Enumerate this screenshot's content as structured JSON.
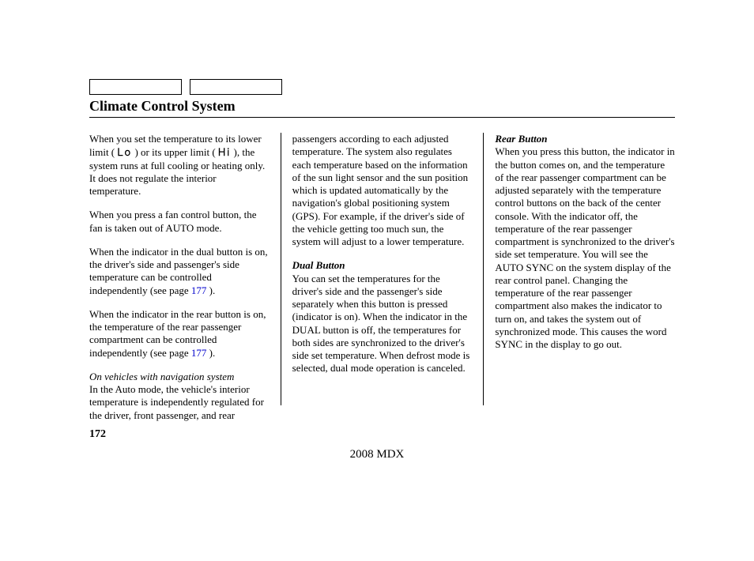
{
  "header": {
    "title": "Climate Control System"
  },
  "col1": {
    "p1a": "When you set the temperature to its lower limit (  ",
    "lo": "Lo",
    "p1b": " ) or its upper limit (  ",
    "hi": "Hi",
    "p1c": " ), the system runs at full cooling or heating only. It does not regulate the interior temperature.",
    "p2": "When you press a fan control button, the fan is taken out of AUTO mode.",
    "p3a": "When the indicator in the dual button is on, the driver's side and passenger's side temperature can be controlled independently (see page  ",
    "p3link": "177",
    "p3b": " ).",
    "p4a": "When the indicator in the rear button is on, the temperature of the rear passenger compartment can be controlled independently (see page  ",
    "p4link": "177",
    "p4b": " ).",
    "p5note": "On vehicles with navigation system",
    "p5": "In the Auto mode, the vehicle's interior temperature is independently regulated for the driver, front passenger, and rear"
  },
  "col2": {
    "p1": "passengers according to each adjusted temperature. The system also regulates each temperature based on the information of the sun light sensor and the sun position which is updated automatically by the navigation's global positioning system (GPS). For example, if the driver's side of the vehicle getting too much sun, the system will adjust to a lower temperature.",
    "h1": "Dual Button",
    "p2": "You can set the temperatures for the driver's side and the passenger's side separately when this button is pressed (indicator is on). When the indicator in the DUAL button is off, the temperatures for both sides are synchronized to the driver's side set temperature. When defrost mode is selected, dual mode operation is canceled."
  },
  "col3": {
    "h1": "Rear Button",
    "p1": "When you press this button, the indicator in the button comes on, and the temperature of the rear passenger compartment can be adjusted separately with the temperature control buttons on the back of the center console. With the indicator off, the temperature of the rear passenger compartment is synchronized to the driver's side set temperature. You will see the AUTO SYNC on the system display of the rear control panel. Changing the temperature of the rear passenger compartment also makes the indicator to turn on, and takes the system out of synchronized mode. This causes the word SYNC in the display to go out."
  },
  "pageNumber": "172",
  "footer": "2008  MDX"
}
